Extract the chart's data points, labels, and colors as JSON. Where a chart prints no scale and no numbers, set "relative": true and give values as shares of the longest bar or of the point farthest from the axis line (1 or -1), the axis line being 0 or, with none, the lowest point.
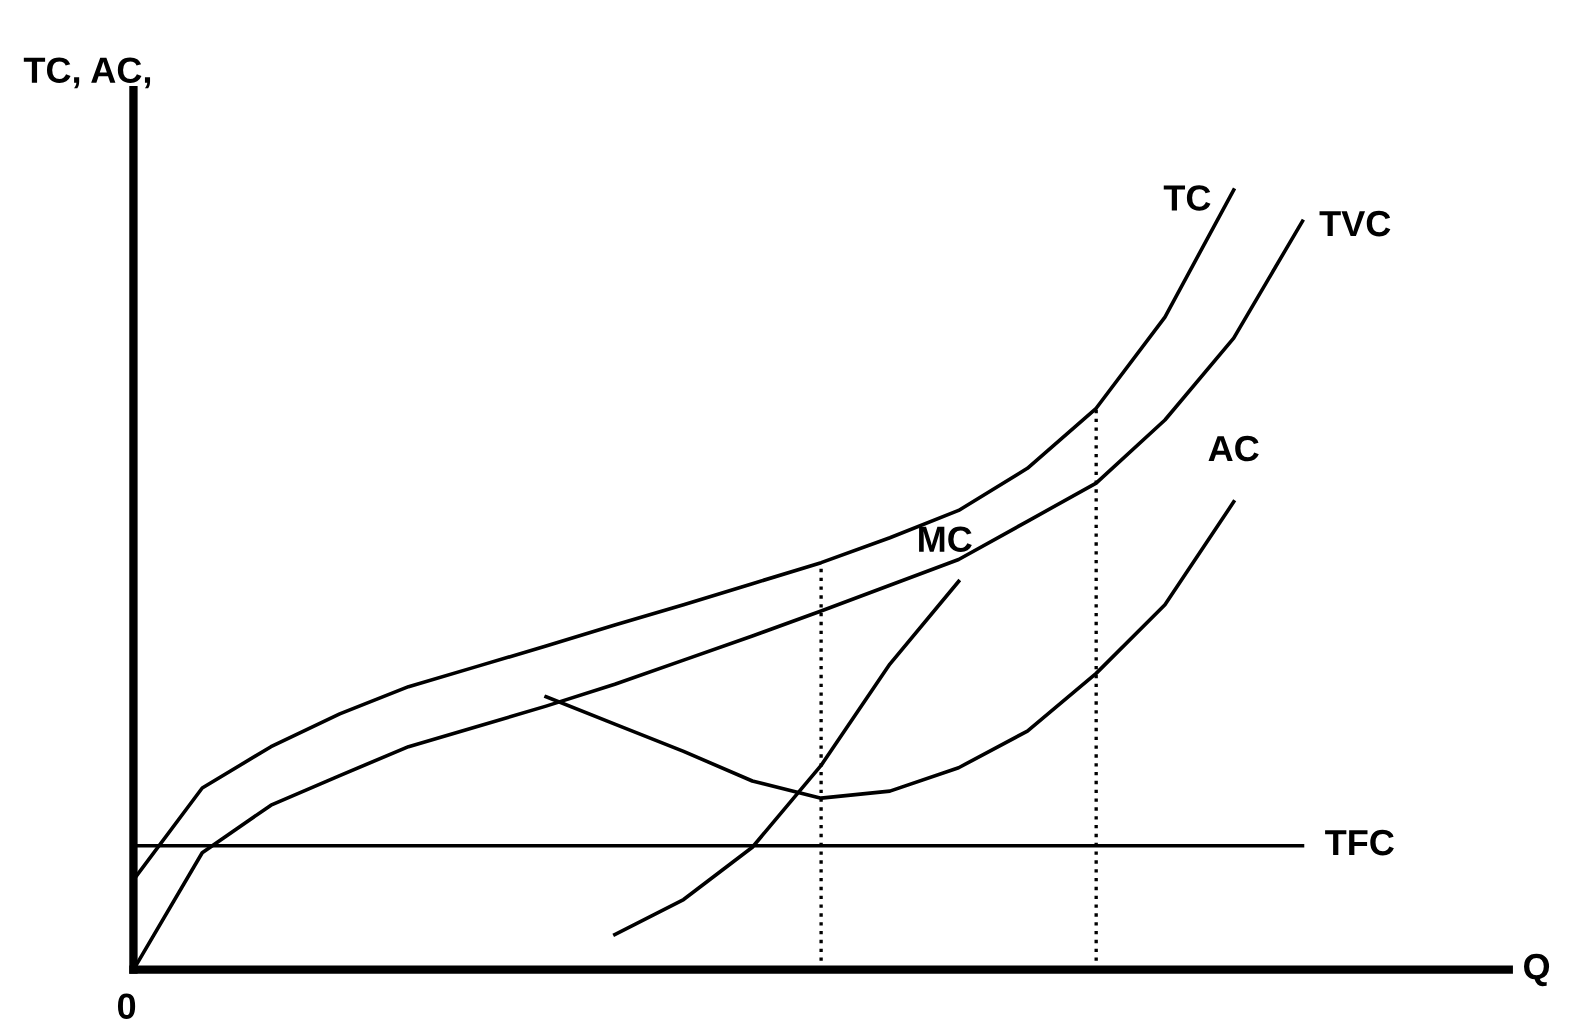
{
  "chart_data": {
    "type": "line",
    "relative": true,
    "ylabel": "TC, AC,",
    "xlabel": "Q",
    "annotations": [
      "0"
    ],
    "marker": "none",
    "categories": [
      null,
      null,
      null,
      null,
      null,
      null,
      null,
      null,
      null,
      null,
      null,
      null,
      null,
      null,
      null,
      null,
      null,
      null,
      null,
      null,
      null
    ],
    "series": [
      {
        "name": "TC",
        "color": "#000000",
        "values": [
          0.115,
          0.233,
          0.286,
          0.328,
          0.363,
          0.389,
          0.415,
          0.442,
          0.468,
          0.495,
          0.522,
          0.554,
          0.589,
          0.643,
          0.72,
          0.837,
          1.0,
          null,
          null,
          null,
          null
        ]
      },
      {
        "name": "TVC",
        "color": "#000000",
        "values": [
          0,
          0.15,
          0.211,
          0.249,
          0.286,
          0.312,
          0.338,
          0.366,
          0.397,
          0.428,
          0.46,
          0.493,
          0.526,
          0.575,
          0.624,
          0.705,
          0.81,
          0.96,
          null,
          null,
          null
        ]
      },
      {
        "name": "TFC",
        "color": "#000000",
        "values": [
          0.159,
          0.159,
          0.159,
          0.159,
          0.159,
          0.159,
          0.159,
          0.159,
          0.159,
          0.159,
          0.159,
          0.159,
          0.159,
          0.159,
          0.159,
          0.159,
          0.159,
          0.159,
          null,
          null,
          null
        ]
      },
      {
        "name": "MC",
        "color": "#000000",
        "values": [
          null,
          null,
          null,
          null,
          null,
          null,
          null,
          0.045,
          0.09,
          0.157,
          0.262,
          0.392,
          0.498,
          null,
          null,
          null,
          null,
          null,
          null,
          null,
          null
        ]
      },
      {
        "name": "AC",
        "color": "#000000",
        "values": [
          null,
          null,
          null,
          null,
          null,
          null,
          0.35,
          0.315,
          0.28,
          0.242,
          0.22,
          0.229,
          0.259,
          0.306,
          0.38,
          0.468,
          0.6,
          null,
          null,
          null,
          null
        ]
      }
    ]
  }
}
